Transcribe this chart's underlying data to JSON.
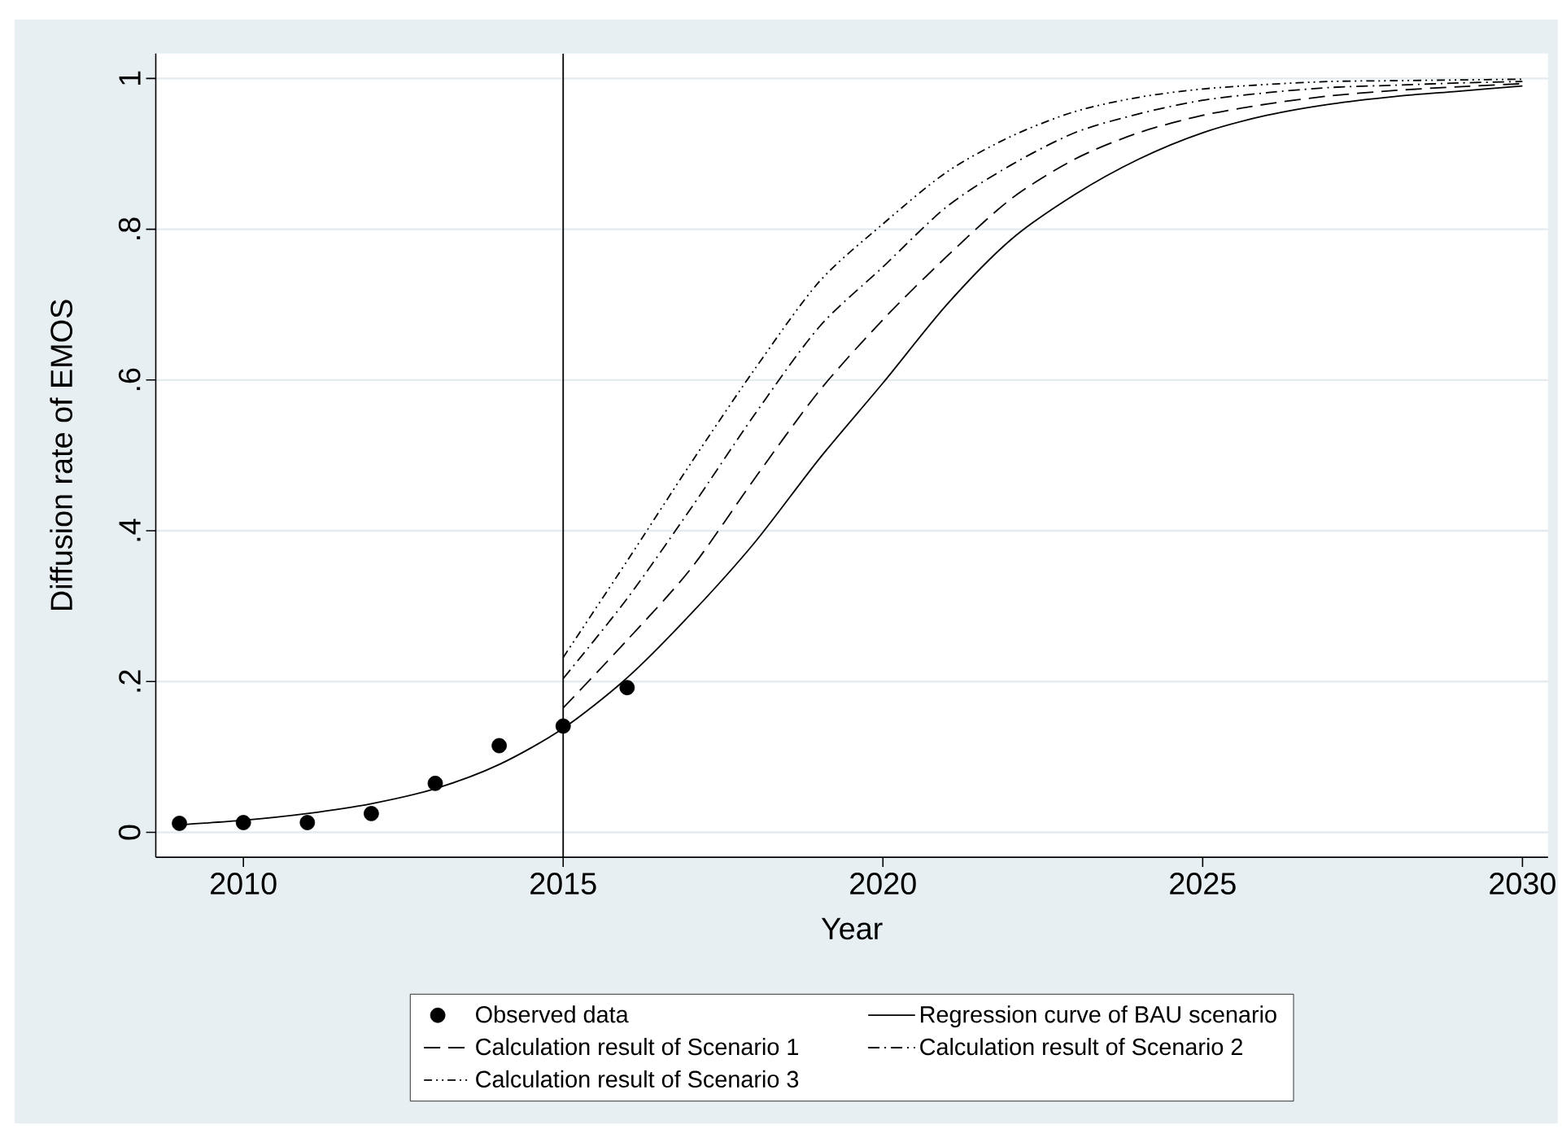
{
  "chart_data": {
    "type": "line",
    "xlabel": "Year",
    "ylabel": "Diffusion rate of EMOS",
    "xlim": [
      2008.63,
      2030.4
    ],
    "ylim": [
      -0.033,
      1.033
    ],
    "xticks": [
      2010,
      2015,
      2020,
      2025,
      2030
    ],
    "yticks": [
      {
        "value": 0,
        "label": "0"
      },
      {
        "value": 0.2,
        "label": ".2"
      },
      {
        "value": 0.4,
        "label": ".4"
      },
      {
        "value": 0.6,
        "label": ".6"
      },
      {
        "value": 0.8,
        "label": ".8"
      },
      {
        "value": 1,
        "label": "1"
      }
    ],
    "grid": "y",
    "legend": "bottom",
    "ref_lines": [
      {
        "axis": "x",
        "value": 2015,
        "color": "#000000"
      }
    ],
    "series": [
      {
        "name": "Observed data",
        "type": "scatter",
        "marker": "circle",
        "color": "#000000",
        "x": [
          2009,
          2010,
          2011,
          2012,
          2013,
          2014,
          2015,
          2016
        ],
        "values": [
          0.012,
          0.013,
          0.013,
          0.025,
          0.065,
          0.115,
          0.141,
          0.192
        ]
      },
      {
        "name": "Regression curve of BAU scenario",
        "line_style": "solid",
        "color": "#000000",
        "x": [
          2009,
          2010,
          2011,
          2012,
          2013,
          2014,
          2015,
          2016,
          2017,
          2018,
          2019,
          2020,
          2021,
          2022,
          2023,
          2024,
          2025,
          2026,
          2027,
          2028,
          2029,
          2030
        ],
        "values": [
          0.01,
          0.016,
          0.025,
          0.038,
          0.058,
          0.09,
          0.138,
          0.205,
          0.29,
          0.385,
          0.495,
          0.596,
          0.7,
          0.786,
          0.846,
          0.893,
          0.928,
          0.951,
          0.966,
          0.976,
          0.983,
          0.99
        ]
      },
      {
        "name": "Calculation result of Scenario 1",
        "line_style": "dashed",
        "color": "#000000",
        "x": [
          2015,
          2016,
          2017,
          2018,
          2019,
          2020,
          2021,
          2022,
          2023,
          2024,
          2025,
          2026,
          2027,
          2028,
          2029,
          2030
        ],
        "values": [
          0.165,
          0.255,
          0.35,
          0.47,
          0.585,
          0.68,
          0.764,
          0.84,
          0.893,
          0.928,
          0.951,
          0.966,
          0.977,
          0.984,
          0.989,
          0.993
        ]
      },
      {
        "name": "Calculation result of Scenario 2",
        "line_style": "dashdot",
        "color": "#000000",
        "x": [
          2015,
          2016,
          2017,
          2018,
          2019,
          2020,
          2021,
          2022,
          2023,
          2024,
          2025,
          2026,
          2027,
          2028,
          2029,
          2030
        ],
        "values": [
          0.204,
          0.31,
          0.43,
          0.555,
          0.67,
          0.75,
          0.83,
          0.885,
          0.928,
          0.953,
          0.971,
          0.981,
          0.988,
          0.991,
          0.994,
          0.996
        ]
      },
      {
        "name": "Calculation result of Scenario 3",
        "line_style": "dashdotdot",
        "color": "#000000",
        "x": [
          2015,
          2016,
          2017,
          2018,
          2019,
          2020,
          2021,
          2022,
          2023,
          2024,
          2025,
          2026,
          2027,
          2028,
          2029,
          2030
        ],
        "values": [
          0.232,
          0.36,
          0.49,
          0.615,
          0.73,
          0.807,
          0.876,
          0.923,
          0.956,
          0.975,
          0.986,
          0.992,
          0.996,
          0.997,
          0.998,
          0.999
        ]
      }
    ]
  }
}
